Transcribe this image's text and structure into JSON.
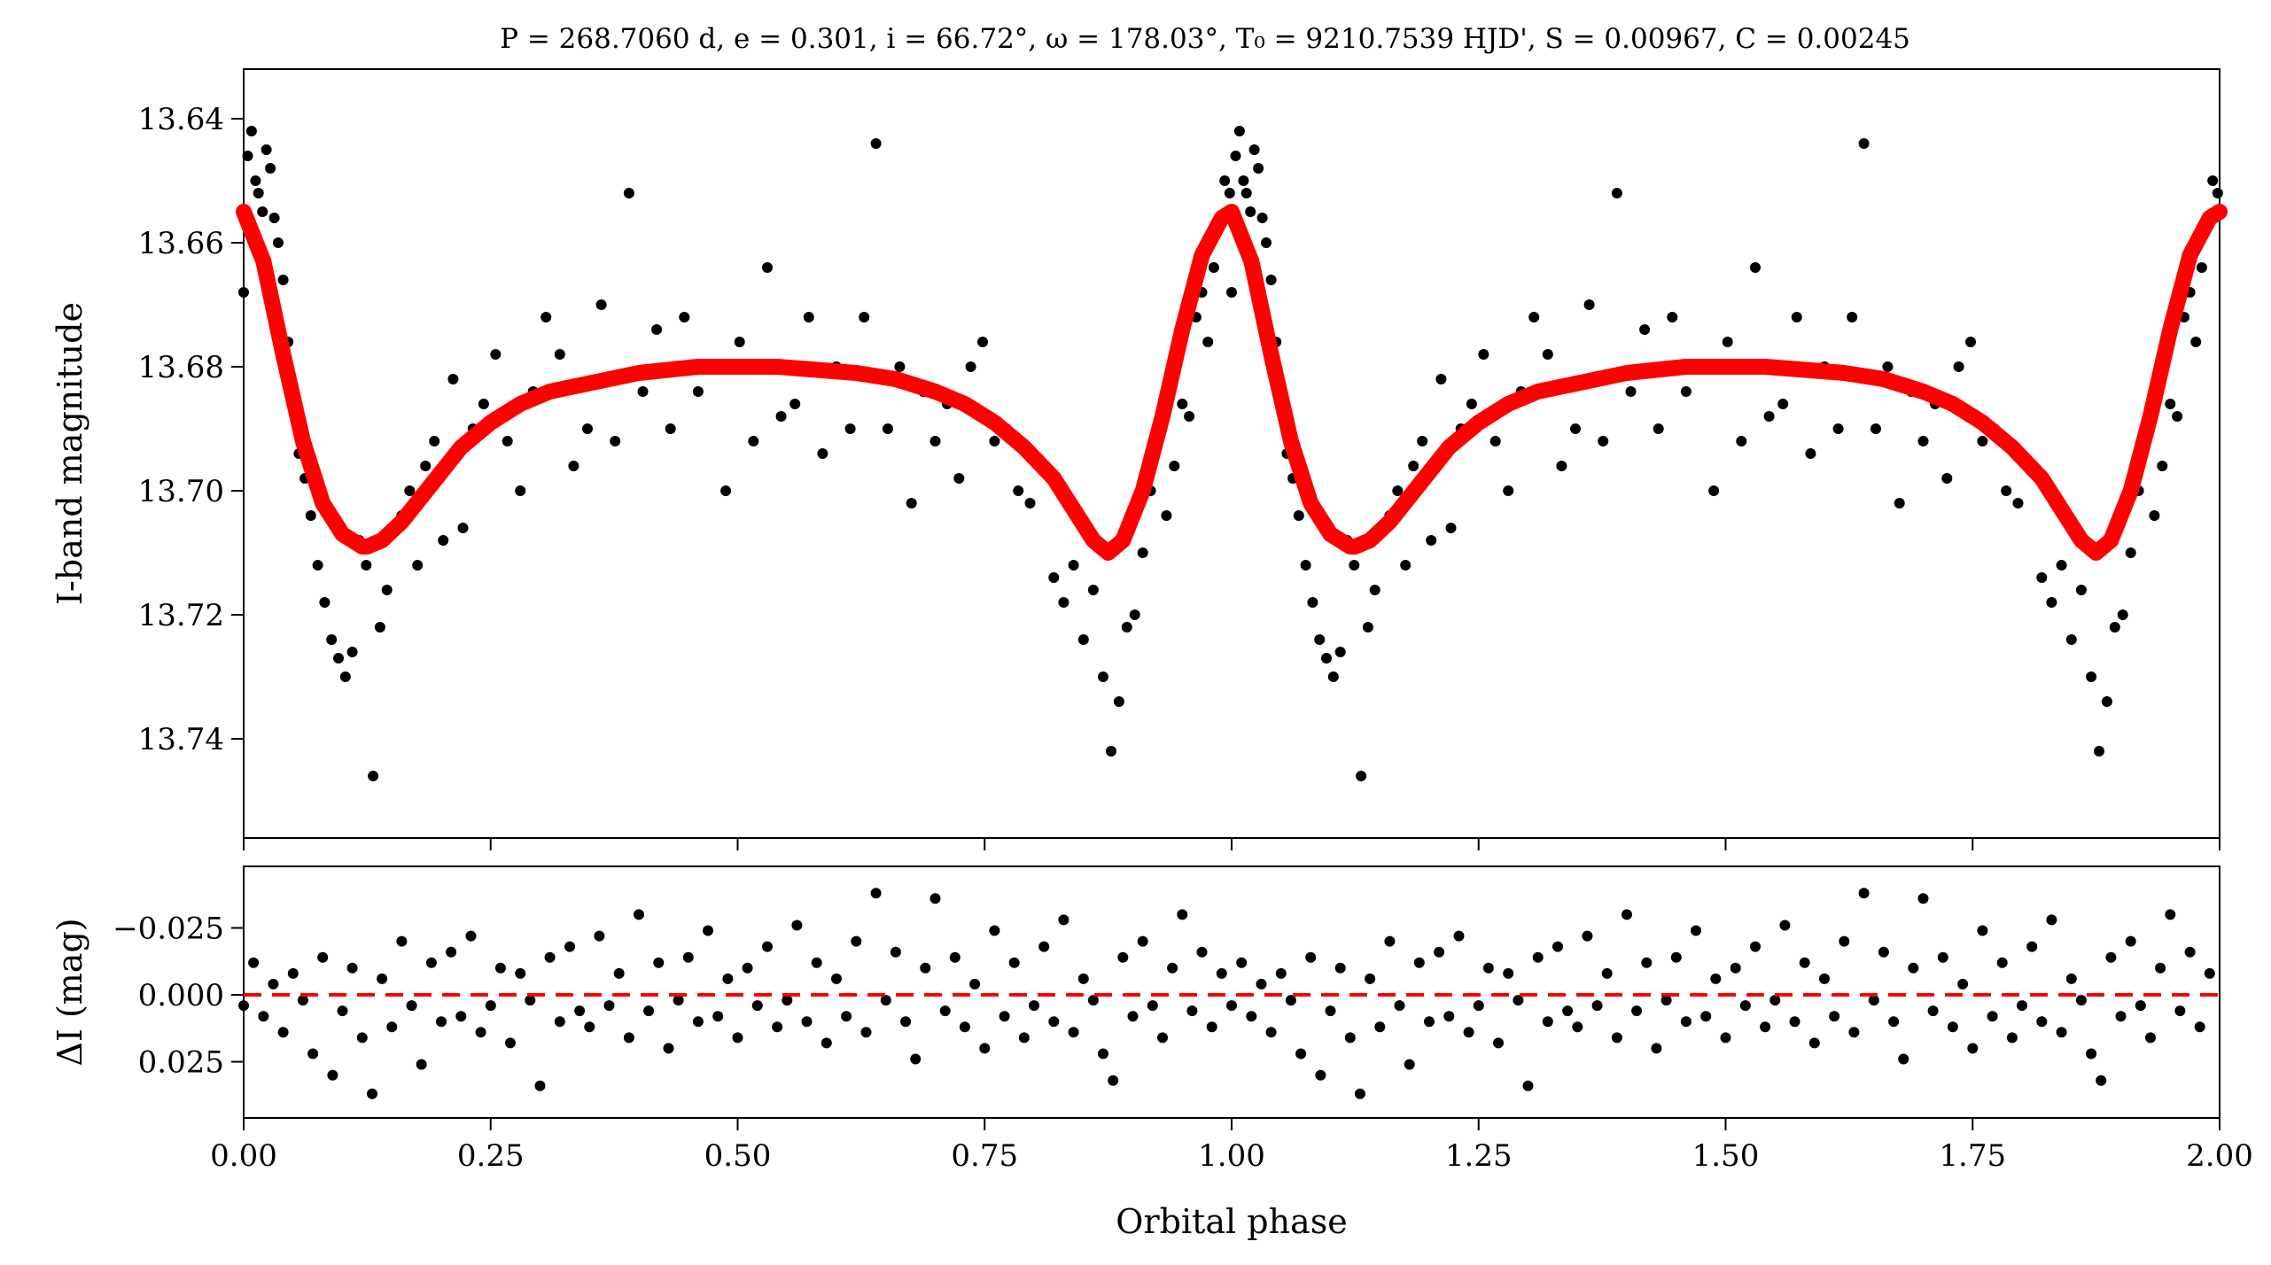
{
  "chart_data": [
    {
      "type": "scatter",
      "panel": "top",
      "title": "P = 268.7060 d, e = 0.301, i = 66.72°, ω = 178.03°, T₀ = 9210.7539 HJD', S = 0.00967, C = 0.00245",
      "xlabel": "",
      "ylabel": "I-band magnitude",
      "xlim": [
        0.0,
        2.0
      ],
      "ylim": [
        13.756,
        13.632
      ],
      "y_inverted": true,
      "y_ticks": [
        13.64,
        13.66,
        13.68,
        13.7,
        13.72,
        13.74
      ],
      "y_tick_labels": [
        "13.64",
        "13.66",
        "13.68",
        "13.70",
        "13.72",
        "13.74"
      ],
      "grid": false,
      "series": [
        {
          "kind": "points",
          "color": "#000000",
          "x": [
            0.0,
            0.004,
            0.008,
            0.012,
            0.015,
            0.019,
            0.023,
            0.027,
            0.031,
            0.035,
            0.04,
            0.045,
            0.05,
            0.056,
            0.062,
            0.068,
            0.075,
            0.082,
            0.089,
            0.096,
            0.103,
            0.11,
            0.117,
            0.124,
            0.131,
            0.138,
            0.145,
            0.152,
            0.16,
            0.168,
            0.176,
            0.184,
            0.193,
            0.202,
            0.212,
            0.222,
            0.232,
            0.243,
            0.255,
            0.267,
            0.28,
            0.293,
            0.306,
            0.32,
            0.334,
            0.348,
            0.362,
            0.376,
            0.39,
            0.404,
            0.418,
            0.432,
            0.446,
            0.46,
            0.474,
            0.488,
            0.502,
            0.516,
            0.53,
            0.544,
            0.558,
            0.572,
            0.586,
            0.6,
            0.614,
            0.628,
            0.64,
            0.652,
            0.664,
            0.676,
            0.688,
            0.7,
            0.712,
            0.724,
            0.736,
            0.748,
            0.76,
            0.772,
            0.784,
            0.796,
            0.808,
            0.82,
            0.83,
            0.84,
            0.85,
            0.86,
            0.87,
            0.878,
            0.886,
            0.894,
            0.902,
            0.91,
            0.918,
            0.926,
            0.934,
            0.942,
            0.95,
            0.957,
            0.964,
            0.97,
            0.976,
            0.982,
            0.988,
            0.993,
            0.998
          ],
          "y": [
            13.668,
            13.646,
            13.642,
            13.65,
            13.652,
            13.655,
            13.645,
            13.648,
            13.656,
            13.66,
            13.666,
            13.676,
            13.686,
            13.694,
            13.698,
            13.704,
            13.712,
            13.718,
            13.724,
            13.727,
            13.73,
            13.726,
            13.708,
            13.712,
            13.746,
            13.722,
            13.716,
            13.706,
            13.704,
            13.7,
            13.712,
            13.696,
            13.692,
            13.708,
            13.682,
            13.706,
            13.69,
            13.686,
            13.678,
            13.692,
            13.7,
            13.684,
            13.672,
            13.678,
            13.696,
            13.69,
            13.67,
            13.692,
            13.652,
            13.684,
            13.674,
            13.69,
            13.672,
            13.684,
            13.68,
            13.7,
            13.676,
            13.692,
            13.664,
            13.688,
            13.686,
            13.672,
            13.694,
            13.68,
            13.69,
            13.672,
            13.644,
            13.69,
            13.68,
            13.702,
            13.684,
            13.692,
            13.686,
            13.698,
            13.68,
            13.676,
            13.692,
            13.69,
            13.7,
            13.702,
            13.696,
            13.714,
            13.718,
            13.712,
            13.724,
            13.716,
            13.73,
            13.742,
            13.734,
            13.722,
            13.72,
            13.71,
            13.7,
            13.692,
            13.704,
            13.696,
            13.686,
            13.688,
            13.672,
            13.668,
            13.676,
            13.664,
            13.656,
            13.65,
            13.652
          ]
        },
        {
          "kind": "model",
          "color": "#ff0000",
          "x": [
            0.0,
            0.02,
            0.04,
            0.06,
            0.08,
            0.1,
            0.12,
            0.125,
            0.14,
            0.16,
            0.18,
            0.2,
            0.22,
            0.25,
            0.28,
            0.31,
            0.34,
            0.37,
            0.4,
            0.43,
            0.46,
            0.5,
            0.54,
            0.58,
            0.62,
            0.66,
            0.7,
            0.73,
            0.76,
            0.79,
            0.82,
            0.84,
            0.86,
            0.875,
            0.89,
            0.91,
            0.93,
            0.95,
            0.97,
            0.99,
            1.0,
            1.02,
            1.04,
            1.06,
            1.08,
            1.1,
            1.12,
            1.125,
            1.14,
            1.16,
            1.18,
            1.2,
            1.22,
            1.25,
            1.28,
            1.31,
            1.34,
            1.37,
            1.4,
            1.43,
            1.46,
            1.5,
            1.54,
            1.58,
            1.62,
            1.66,
            1.7,
            1.73,
            1.76,
            1.79,
            1.82,
            1.84,
            1.86,
            1.875,
            1.89,
            1.91,
            1.93,
            1.95,
            1.97,
            1.99,
            2.0
          ],
          "y": [
            13.655,
            13.663,
            13.678,
            13.692,
            13.702,
            13.707,
            13.709,
            13.709,
            13.708,
            13.705,
            13.701,
            13.697,
            13.693,
            13.689,
            13.686,
            13.684,
            13.683,
            13.682,
            13.681,
            13.6805,
            13.68,
            13.68,
            13.68,
            13.6805,
            13.681,
            13.682,
            13.684,
            13.686,
            13.689,
            13.693,
            13.698,
            13.703,
            13.708,
            13.71,
            13.708,
            13.7,
            13.688,
            13.674,
            13.662,
            13.656,
            13.655,
            13.663,
            13.678,
            13.692,
            13.702,
            13.707,
            13.709,
            13.709,
            13.708,
            13.705,
            13.701,
            13.697,
            13.693,
            13.689,
            13.686,
            13.684,
            13.683,
            13.682,
            13.681,
            13.6805,
            13.68,
            13.68,
            13.68,
            13.6805,
            13.681,
            13.682,
            13.684,
            13.686,
            13.689,
            13.693,
            13.698,
            13.703,
            13.708,
            13.71,
            13.708,
            13.7,
            13.688,
            13.674,
            13.662,
            13.656,
            13.655
          ]
        }
      ]
    },
    {
      "type": "scatter",
      "panel": "bottom",
      "title": "",
      "xlabel": "Orbital phase",
      "ylabel": "ΔI (mag)",
      "xlim": [
        0.0,
        2.0
      ],
      "ylim": [
        0.046,
        -0.048
      ],
      "y_inverted": true,
      "y_ticks": [
        -0.025,
        0.0,
        0.025
      ],
      "y_tick_labels": [
        "−0.025",
        "0.000",
        "0.025"
      ],
      "x_ticks": [
        0.0,
        0.25,
        0.5,
        0.75,
        1.0,
        1.25,
        1.5,
        1.75,
        2.0
      ],
      "x_tick_labels": [
        "0.00",
        "0.25",
        "0.50",
        "0.75",
        "1.00",
        "1.25",
        "1.50",
        "1.75",
        "2.00"
      ],
      "grid": false,
      "series": [
        {
          "kind": "points",
          "color": "#000000",
          "x": [
            0.0,
            0.01,
            0.02,
            0.03,
            0.04,
            0.05,
            0.06,
            0.07,
            0.08,
            0.09,
            0.1,
            0.11,
            0.12,
            0.13,
            0.14,
            0.15,
            0.16,
            0.17,
            0.18,
            0.19,
            0.2,
            0.21,
            0.22,
            0.23,
            0.24,
            0.25,
            0.26,
            0.27,
            0.28,
            0.29,
            0.3,
            0.31,
            0.32,
            0.33,
            0.34,
            0.35,
            0.36,
            0.37,
            0.38,
            0.39,
            0.4,
            0.41,
            0.42,
            0.43,
            0.44,
            0.45,
            0.46,
            0.47,
            0.48,
            0.49,
            0.5,
            0.51,
            0.52,
            0.53,
            0.54,
            0.55,
            0.56,
            0.57,
            0.58,
            0.59,
            0.6,
            0.61,
            0.62,
            0.63,
            0.64,
            0.65,
            0.66,
            0.67,
            0.68,
            0.69,
            0.7,
            0.71,
            0.72,
            0.73,
            0.74,
            0.75,
            0.76,
            0.77,
            0.78,
            0.79,
            0.8,
            0.81,
            0.82,
            0.83,
            0.84,
            0.85,
            0.86,
            0.87,
            0.88,
            0.89,
            0.9,
            0.91,
            0.92,
            0.93,
            0.94,
            0.95,
            0.96,
            0.97,
            0.98,
            0.99
          ],
          "y": [
            0.004,
            -0.012,
            0.008,
            -0.004,
            0.014,
            -0.008,
            0.002,
            0.022,
            -0.014,
            0.03,
            0.006,
            -0.01,
            0.016,
            0.037,
            -0.006,
            0.012,
            -0.02,
            0.004,
            0.026,
            -0.012,
            0.01,
            -0.016,
            0.008,
            -0.022,
            0.014,
            0.004,
            -0.01,
            0.018,
            -0.008,
            0.002,
            0.034,
            -0.014,
            0.01,
            -0.018,
            0.006,
            0.012,
            -0.022,
            0.004,
            -0.008,
            0.016,
            -0.03,
            0.006,
            -0.012,
            0.02,
            0.002,
            -0.014,
            0.01,
            -0.024,
            0.008,
            -0.006,
            0.016,
            -0.01,
            0.004,
            -0.018,
            0.012,
            0.002,
            -0.026,
            0.01,
            -0.012,
            0.018,
            -0.006,
            0.008,
            -0.02,
            0.014,
            -0.038,
            0.002,
            -0.016,
            0.01,
            0.024,
            -0.01,
            -0.036,
            0.006,
            -0.014,
            0.012,
            -0.004,
            0.02,
            -0.024,
            0.008,
            -0.012,
            0.016,
            0.004,
            -0.018,
            0.01,
            -0.028,
            0.014,
            -0.006,
            0.002,
            0.022,
            0.032,
            -0.014,
            0.008,
            -0.02,
            0.004,
            0.016,
            -0.01,
            -0.03,
            0.006,
            -0.016,
            0.012,
            -0.008
          ]
        },
        {
          "kind": "zero-line",
          "color": "#ff0000",
          "x": [
            0.0,
            2.0
          ],
          "y": [
            0.0,
            0.0
          ]
        }
      ]
    }
  ]
}
